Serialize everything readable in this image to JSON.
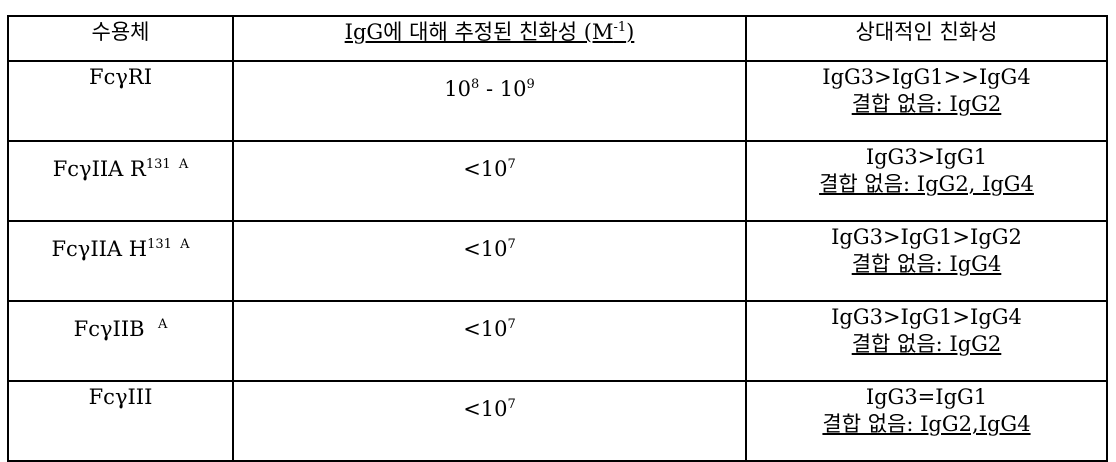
{
  "header": {
    "col1": "수용체",
    "col2": "IgG에 대해 추정된 친화성 (M",
    "col2_sup": "-1",
    "col2_close": ")",
    "col3": "상대적인 친화성"
  },
  "rows": [
    {
      "receptor": "FcγRI",
      "receptor_sup": "",
      "affinity_base1": "10",
      "affinity_exp1": "8",
      "affinity_sep": " - ",
      "affinity_base2": "10",
      "affinity_exp2": "9",
      "relative": "IgG3>IgG1>>IgG4",
      "no_binding": "결합 없음: IgG2"
    },
    {
      "receptor": "FcγIIA R",
      "receptor_sup": "131  A",
      "affinity_base1": "<10",
      "affinity_exp1": "7",
      "relative": "IgG3>IgG1",
      "no_binding": "결합 없음: IgG2, IgG4"
    },
    {
      "receptor": "FcγIIA H",
      "receptor_sup": "131  A",
      "affinity_base1": "<10",
      "affinity_exp1": "7",
      "relative": "IgG3>IgG1>IgG2",
      "no_binding": "결합 없음: IgG4"
    },
    {
      "receptor": "FcγIIB",
      "receptor_sup": "A",
      "affinity_base1": "<10",
      "affinity_exp1": "7",
      "relative": "IgG3>IgG1>IgG4",
      "no_binding": "결합 없음: IgG2"
    },
    {
      "receptor": "FcγIII",
      "receptor_sup": "",
      "affinity_base1": "<10",
      "affinity_exp1": "7",
      "relative": "IgG3=IgG1",
      "no_binding": "결합 없음: IgG2,IgG4"
    }
  ]
}
